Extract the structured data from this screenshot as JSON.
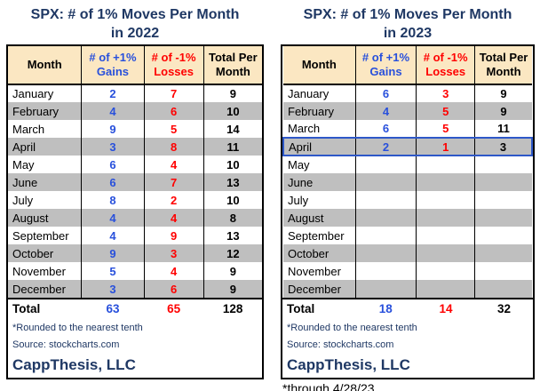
{
  "colors": {
    "navy": "#1F3864",
    "blue": "#2850DC",
    "red": "#FF0000",
    "header_bg": "#FBE7C2",
    "stripe_gray": "#BFBFBF",
    "highlight_border": "#2E58C8"
  },
  "caption": "*through 4/28/23",
  "tables": [
    {
      "title_line1": "SPX:  # of 1% Moves Per Month",
      "title_line2": "in 2022",
      "headers": {
        "month": "Month",
        "gains": "# of +1% Gains",
        "losses": "# of -1% Losses",
        "total": "Total Per Month"
      },
      "rows": [
        {
          "month": "January",
          "gains": "2",
          "losses": "7",
          "total": "9"
        },
        {
          "month": "February",
          "gains": "4",
          "losses": "6",
          "total": "10"
        },
        {
          "month": "March",
          "gains": "9",
          "losses": "5",
          "total": "14"
        },
        {
          "month": "April",
          "gains": "3",
          "losses": "8",
          "total": "11"
        },
        {
          "month": "May",
          "gains": "6",
          "losses": "4",
          "total": "10"
        },
        {
          "month": "June",
          "gains": "6",
          "losses": "7",
          "total": "13"
        },
        {
          "month": "July",
          "gains": "8",
          "losses": "2",
          "total": "10"
        },
        {
          "month": "August",
          "gains": "4",
          "losses": "4",
          "total": "8"
        },
        {
          "month": "September",
          "gains": "4",
          "losses": "9",
          "total": "13"
        },
        {
          "month": "October",
          "gains": "9",
          "losses": "3",
          "total": "12"
        },
        {
          "month": "November",
          "gains": "5",
          "losses": "4",
          "total": "9"
        },
        {
          "month": "December",
          "gains": "3",
          "losses": "6",
          "total": "9"
        }
      ],
      "total": {
        "label": "Total",
        "gains": "63",
        "losses": "65",
        "total": "128"
      },
      "footnote1": "*Rounded to the nearest tenth",
      "footnote2": "Source: stockcharts.com",
      "brand": "CappThesis, LLC",
      "highlight_month": null
    },
    {
      "title_line1": "SPX:  # of 1% Moves Per Month",
      "title_line2": "in 2023",
      "headers": {
        "month": "Month",
        "gains": "# of +1% Gains",
        "losses": "# of -1% Losses",
        "total": "Total Per Month"
      },
      "rows": [
        {
          "month": "January",
          "gains": "6",
          "losses": "3",
          "total": "9"
        },
        {
          "month": "February",
          "gains": "4",
          "losses": "5",
          "total": "9"
        },
        {
          "month": "March",
          "gains": "6",
          "losses": "5",
          "total": "11"
        },
        {
          "month": "April",
          "gains": "2",
          "losses": "1",
          "total": "3"
        },
        {
          "month": "May",
          "gains": "",
          "losses": "",
          "total": ""
        },
        {
          "month": "June",
          "gains": "",
          "losses": "",
          "total": ""
        },
        {
          "month": "July",
          "gains": "",
          "losses": "",
          "total": ""
        },
        {
          "month": "August",
          "gains": "",
          "losses": "",
          "total": ""
        },
        {
          "month": "September",
          "gains": "",
          "losses": "",
          "total": ""
        },
        {
          "month": "October",
          "gains": "",
          "losses": "",
          "total": ""
        },
        {
          "month": "November",
          "gains": "",
          "losses": "",
          "total": ""
        },
        {
          "month": "December",
          "gains": "",
          "losses": "",
          "total": ""
        }
      ],
      "total": {
        "label": "Total",
        "gains": "18",
        "losses": "14",
        "total": "32"
      },
      "footnote1": "*Rounded to the nearest tenth",
      "footnote2": "Source: stockcharts.com",
      "brand": "CappThesis, LLC",
      "highlight_month": "April"
    }
  ],
  "chart_data": [
    {
      "type": "table",
      "title": "SPX: # of 1% Moves Per Month in 2022",
      "categories": [
        "January",
        "February",
        "March",
        "April",
        "May",
        "June",
        "July",
        "August",
        "September",
        "October",
        "November",
        "December"
      ],
      "series": [
        {
          "name": "# of +1% Gains",
          "values": [
            2,
            4,
            9,
            3,
            6,
            6,
            8,
            4,
            4,
            9,
            5,
            3
          ]
        },
        {
          "name": "# of -1% Losses",
          "values": [
            7,
            6,
            5,
            8,
            4,
            7,
            2,
            4,
            9,
            3,
            4,
            6
          ]
        },
        {
          "name": "Total Per Month",
          "values": [
            9,
            10,
            14,
            11,
            10,
            13,
            10,
            8,
            13,
            12,
            9,
            9
          ]
        }
      ],
      "totals": {
        "gains": 63,
        "losses": 65,
        "total": 128
      },
      "footnotes": [
        "*Rounded to the nearest tenth",
        "Source: stockcharts.com",
        "CappThesis, LLC"
      ]
    },
    {
      "type": "table",
      "title": "SPX: # of 1% Moves Per Month in 2023",
      "categories": [
        "January",
        "February",
        "March",
        "April",
        "May",
        "June",
        "July",
        "August",
        "September",
        "October",
        "November",
        "December"
      ],
      "series": [
        {
          "name": "# of +1% Gains",
          "values": [
            6,
            4,
            6,
            2,
            null,
            null,
            null,
            null,
            null,
            null,
            null,
            null
          ]
        },
        {
          "name": "# of -1% Losses",
          "values": [
            3,
            5,
            5,
            1,
            null,
            null,
            null,
            null,
            null,
            null,
            null,
            null
          ]
        },
        {
          "name": "Total Per Month",
          "values": [
            9,
            9,
            11,
            3,
            null,
            null,
            null,
            null,
            null,
            null,
            null,
            null
          ]
        }
      ],
      "totals": {
        "gains": 18,
        "losses": 14,
        "total": 32
      },
      "highlighted_row": "April",
      "footnotes": [
        "*Rounded to the nearest tenth",
        "Source: stockcharts.com",
        "CappThesis, LLC",
        "*through 4/28/23"
      ]
    }
  ]
}
